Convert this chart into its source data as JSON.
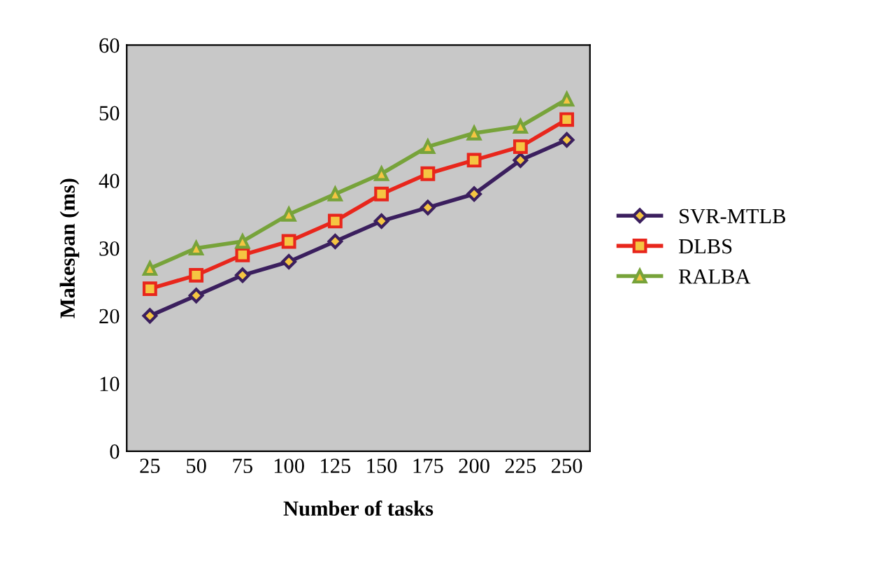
{
  "chart_data": {
    "type": "line",
    "xlabel": "Number of tasks",
    "ylabel": "Makespan (ms)",
    "categories": [
      "25",
      "50",
      "75",
      "100",
      "125",
      "150",
      "175",
      "200",
      "225",
      "250"
    ],
    "ylim": [
      0,
      60
    ],
    "yticks": [
      0,
      10,
      20,
      30,
      40,
      50,
      60
    ],
    "grid": false,
    "legend": "right",
    "series": [
      {
        "name": "SVR-MTLB",
        "color": "#3b1f5e",
        "marker": "diamond",
        "values": [
          20,
          23,
          26,
          28,
          31,
          34,
          36,
          38,
          43,
          46
        ]
      },
      {
        "name": "DLBS",
        "color": "#e8261c",
        "marker": "square",
        "values": [
          24,
          26,
          29,
          31,
          34,
          38,
          41,
          43,
          45,
          49
        ]
      },
      {
        "name": "RALBA",
        "color": "#77a33a",
        "marker": "triangle",
        "values": [
          27,
          30,
          31,
          35,
          38,
          41,
          45,
          47,
          48,
          52
        ]
      }
    ]
  }
}
